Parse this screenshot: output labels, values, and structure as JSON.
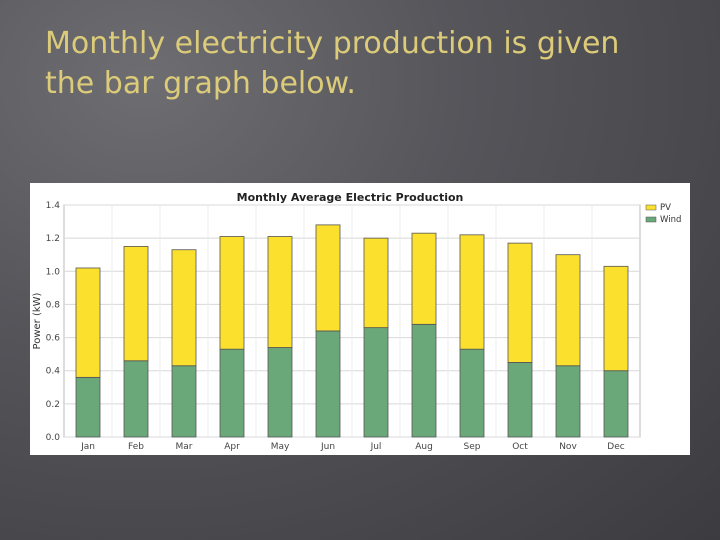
{
  "slide": {
    "title_line1": "Monthly electricity production is given",
    "title_line2": "the bar graph below."
  },
  "chart_data": {
    "type": "bar",
    "stacked": true,
    "title": "Monthly Average Electric Production",
    "xlabel": "",
    "ylabel": "Power (kW)",
    "ylim": [
      0,
      1.4
    ],
    "yticks": [
      "0.0",
      "0.2",
      "0.4",
      "0.6",
      "0.8",
      "1.0",
      "1.2",
      "1.4"
    ],
    "categories": [
      "Jan",
      "Feb",
      "Mar",
      "Apr",
      "May",
      "Jun",
      "Jul",
      "Aug",
      "Sep",
      "Oct",
      "Nov",
      "Dec"
    ],
    "series": [
      {
        "name": "Wind",
        "color": "#6aa87a",
        "values": [
          0.36,
          0.46,
          0.43,
          0.53,
          0.54,
          0.64,
          0.66,
          0.68,
          0.53,
          0.45,
          0.43,
          0.4
        ]
      },
      {
        "name": "PV",
        "color": "#fbe02e",
        "values": [
          0.66,
          0.69,
          0.7,
          0.68,
          0.67,
          0.64,
          0.54,
          0.55,
          0.69,
          0.72,
          0.67,
          0.63
        ]
      }
    ],
    "legend": [
      "PV",
      "Wind"
    ],
    "legend_position": "right",
    "grid": true
  }
}
